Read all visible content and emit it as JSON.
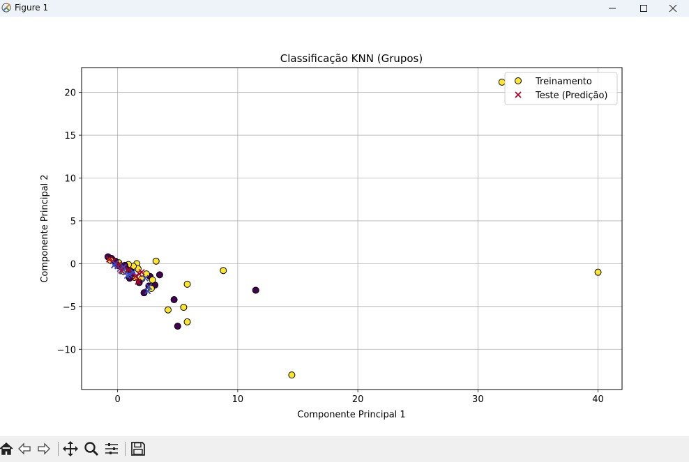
{
  "window": {
    "title": "Figure 1",
    "icons": [
      "app-icon",
      "minimize-icon",
      "maximize-icon",
      "close-icon"
    ]
  },
  "toolbar": {
    "buttons": [
      "home-icon",
      "back-icon",
      "forward-icon",
      "pan-icon",
      "zoom-icon",
      "configure-subplots-icon",
      "save-icon"
    ]
  },
  "chart_data": {
    "type": "scatter",
    "title": "Classificação KNN (Grupos)",
    "xlabel": "Componente Principal 1",
    "ylabel": "Componente Principal 2",
    "xlim": [
      -3,
      42
    ],
    "ylim": [
      -14.7,
      22.9
    ],
    "xticks": [
      0,
      10,
      20,
      30,
      40
    ],
    "yticks": [
      -10,
      -5,
      0,
      5,
      10,
      15,
      20
    ],
    "grid": true,
    "legend_position": "top-right",
    "colors": {
      "yellow": "#fde725",
      "purple": "#440154",
      "blue": "#3b4cc0",
      "red": "#b40426",
      "grid": "#b0b0b0"
    },
    "series": [
      {
        "name": "Treinamento",
        "marker": "circle",
        "points": [
          {
            "x": 32.0,
            "y": 21.2,
            "c": "yellow"
          },
          {
            "x": 40.0,
            "y": -1.0,
            "c": "yellow"
          },
          {
            "x": 8.8,
            "y": -0.8,
            "c": "yellow"
          },
          {
            "x": 14.5,
            "y": -13.0,
            "c": "yellow"
          },
          {
            "x": 11.5,
            "y": -3.1,
            "c": "purple"
          },
          {
            "x": 5.8,
            "y": -2.4,
            "c": "yellow"
          },
          {
            "x": 5.5,
            "y": -5.1,
            "c": "yellow"
          },
          {
            "x": 5.8,
            "y": -6.8,
            "c": "yellow"
          },
          {
            "x": 4.2,
            "y": -5.4,
            "c": "yellow"
          },
          {
            "x": 4.7,
            "y": -4.2,
            "c": "purple"
          },
          {
            "x": 5.0,
            "y": -7.3,
            "c": "purple"
          },
          {
            "x": 3.2,
            "y": 0.3,
            "c": "yellow"
          },
          {
            "x": 3.5,
            "y": -1.3,
            "c": "purple"
          },
          {
            "x": 3.1,
            "y": -2.5,
            "c": "purple"
          },
          {
            "x": 2.7,
            "y": -1.5,
            "c": "purple"
          },
          {
            "x": 2.6,
            "y": -2.6,
            "c": "purple"
          },
          {
            "x": 2.8,
            "y": -2.9,
            "c": "yellow"
          },
          {
            "x": 2.2,
            "y": -3.4,
            "c": "purple"
          },
          {
            "x": 2.4,
            "y": -1.2,
            "c": "yellow"
          },
          {
            "x": 2.9,
            "y": -1.9,
            "c": "yellow"
          },
          {
            "x": 2.0,
            "y": -1.8,
            "c": "yellow"
          },
          {
            "x": 1.6,
            "y": 0.0,
            "c": "yellow"
          },
          {
            "x": 1.7,
            "y": -0.6,
            "c": "yellow"
          },
          {
            "x": 1.4,
            "y": -1.6,
            "c": "yellow"
          },
          {
            "x": 1.8,
            "y": -2.2,
            "c": "purple"
          },
          {
            "x": 1.3,
            "y": -0.3,
            "c": "yellow"
          },
          {
            "x": 1.1,
            "y": -0.9,
            "c": "purple"
          },
          {
            "x": 1.0,
            "y": -1.7,
            "c": "purple"
          },
          {
            "x": 0.9,
            "y": -0.1,
            "c": "yellow"
          },
          {
            "x": 0.7,
            "y": -0.6,
            "c": "purple"
          },
          {
            "x": 0.5,
            "y": -0.9,
            "c": "yellow"
          },
          {
            "x": 0.3,
            "y": -0.4,
            "c": "purple"
          },
          {
            "x": 0.1,
            "y": 0.1,
            "c": "yellow"
          },
          {
            "x": -0.2,
            "y": 0.3,
            "c": "purple"
          },
          {
            "x": -0.5,
            "y": 0.6,
            "c": "purple"
          },
          {
            "x": -0.8,
            "y": 0.8,
            "c": "purple"
          },
          {
            "x": -0.6,
            "y": 0.4,
            "c": "yellow"
          },
          {
            "x": 0.0,
            "y": -0.2,
            "c": "purple"
          },
          {
            "x": 0.6,
            "y": -0.2,
            "c": "purple"
          },
          {
            "x": 1.2,
            "y": -1.2,
            "c": "purple"
          }
        ]
      },
      {
        "name": "Teste (Predição)",
        "marker": "x",
        "points": [
          {
            "x": -0.7,
            "y": 0.5,
            "c": "red"
          },
          {
            "x": -0.4,
            "y": 0.3,
            "c": "red"
          },
          {
            "x": -0.2,
            "y": 0.0,
            "c": "blue"
          },
          {
            "x": 0.0,
            "y": -0.3,
            "c": "blue"
          },
          {
            "x": 0.2,
            "y": -0.6,
            "c": "blue"
          },
          {
            "x": 0.4,
            "y": -0.9,
            "c": "blue"
          },
          {
            "x": 0.1,
            "y": -0.1,
            "c": "red"
          },
          {
            "x": 0.5,
            "y": -0.4,
            "c": "blue"
          },
          {
            "x": 0.7,
            "y": -1.0,
            "c": "blue"
          },
          {
            "x": 0.9,
            "y": -0.7,
            "c": "red"
          },
          {
            "x": 1.0,
            "y": -1.3,
            "c": "blue"
          },
          {
            "x": 1.3,
            "y": -1.0,
            "c": "blue"
          },
          {
            "x": 1.5,
            "y": -1.5,
            "c": "red"
          },
          {
            "x": 1.8,
            "y": -1.2,
            "c": "red"
          },
          {
            "x": 2.0,
            "y": -1.0,
            "c": "red"
          },
          {
            "x": 1.7,
            "y": -2.1,
            "c": "red"
          },
          {
            "x": 2.3,
            "y": -1.7,
            "c": "blue"
          },
          {
            "x": 2.6,
            "y": -2.7,
            "c": "blue"
          },
          {
            "x": 2.5,
            "y": -3.2,
            "c": "blue"
          },
          {
            "x": 0.3,
            "y": -0.8,
            "c": "red"
          },
          {
            "x": -0.3,
            "y": -0.2,
            "c": "blue"
          },
          {
            "x": 0.8,
            "y": -1.4,
            "c": "blue"
          }
        ]
      }
    ]
  }
}
